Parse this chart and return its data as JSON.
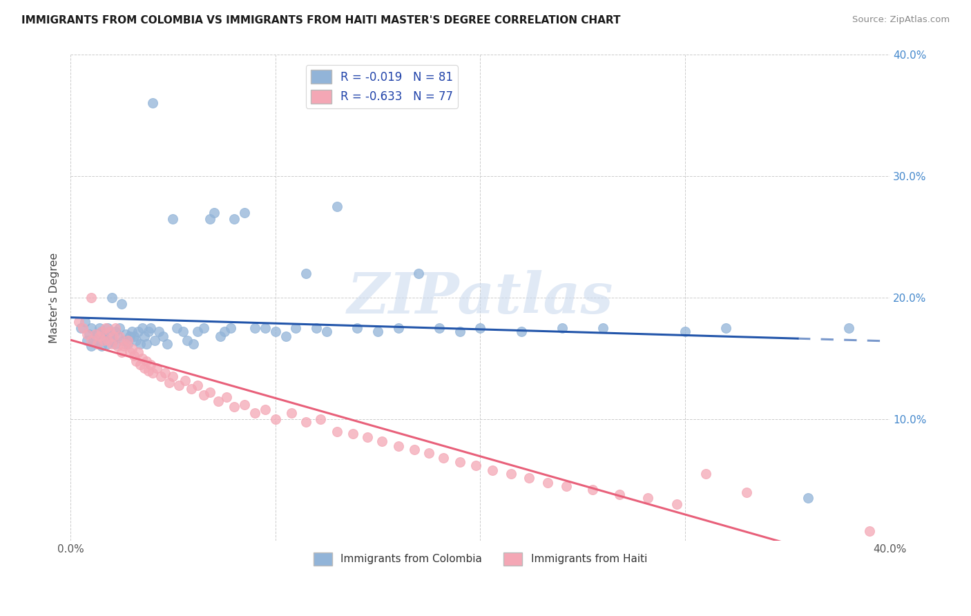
{
  "title": "IMMIGRANTS FROM COLOMBIA VS IMMIGRANTS FROM HAITI MASTER'S DEGREE CORRELATION CHART",
  "source": "Source: ZipAtlas.com",
  "ylabel": "Master's Degree",
  "xlim": [
    0.0,
    0.4
  ],
  "ylim": [
    0.0,
    0.4
  ],
  "colombia_R": -0.019,
  "colombia_N": 81,
  "haiti_R": -0.633,
  "haiti_N": 77,
  "colombia_color": "#92B4D8",
  "haiti_color": "#F4A7B5",
  "colombia_line_color": "#2255AA",
  "haiti_line_color": "#E8607A",
  "legend_colombia": "Immigrants from Colombia",
  "legend_haiti": "Immigrants from Haiti",
  "watermark": "ZIPatlas",
  "colombia_x": [
    0.005,
    0.007,
    0.008,
    0.009,
    0.01,
    0.01,
    0.011,
    0.012,
    0.013,
    0.013,
    0.014,
    0.015,
    0.015,
    0.016,
    0.017,
    0.018,
    0.018,
    0.019,
    0.02,
    0.021,
    0.022,
    0.022,
    0.023,
    0.024,
    0.025,
    0.026,
    0.027,
    0.028,
    0.029,
    0.03,
    0.031,
    0.032,
    0.033,
    0.034,
    0.035,
    0.036,
    0.037,
    0.038,
    0.039,
    0.04,
    0.041,
    0.043,
    0.045,
    0.047,
    0.05,
    0.052,
    0.055,
    0.057,
    0.06,
    0.062,
    0.065,
    0.068,
    0.07,
    0.073,
    0.075,
    0.078,
    0.08,
    0.085,
    0.09,
    0.095,
    0.1,
    0.105,
    0.11,
    0.115,
    0.12,
    0.125,
    0.13,
    0.14,
    0.15,
    0.16,
    0.17,
    0.18,
    0.19,
    0.2,
    0.22,
    0.24,
    0.26,
    0.3,
    0.32,
    0.36,
    0.38
  ],
  "colombia_y": [
    0.175,
    0.18,
    0.165,
    0.17,
    0.16,
    0.175,
    0.165,
    0.168,
    0.162,
    0.17,
    0.175,
    0.16,
    0.172,
    0.168,
    0.165,
    0.162,
    0.175,
    0.168,
    0.2,
    0.165,
    0.172,
    0.162,
    0.168,
    0.175,
    0.195,
    0.165,
    0.17,
    0.162,
    0.168,
    0.172,
    0.168,
    0.165,
    0.172,
    0.162,
    0.175,
    0.168,
    0.162,
    0.172,
    0.175,
    0.36,
    0.165,
    0.172,
    0.168,
    0.162,
    0.265,
    0.175,
    0.172,
    0.165,
    0.162,
    0.172,
    0.175,
    0.265,
    0.27,
    0.168,
    0.172,
    0.175,
    0.265,
    0.27,
    0.175,
    0.175,
    0.172,
    0.168,
    0.175,
    0.22,
    0.175,
    0.172,
    0.275,
    0.175,
    0.172,
    0.175,
    0.22,
    0.175,
    0.172,
    0.175,
    0.172,
    0.175,
    0.175,
    0.172,
    0.175,
    0.035,
    0.175
  ],
  "haiti_x": [
    0.004,
    0.006,
    0.008,
    0.01,
    0.01,
    0.012,
    0.013,
    0.014,
    0.015,
    0.016,
    0.017,
    0.018,
    0.019,
    0.02,
    0.021,
    0.022,
    0.023,
    0.024,
    0.025,
    0.026,
    0.027,
    0.028,
    0.029,
    0.03,
    0.031,
    0.032,
    0.033,
    0.034,
    0.035,
    0.036,
    0.037,
    0.038,
    0.039,
    0.04,
    0.042,
    0.044,
    0.046,
    0.048,
    0.05,
    0.053,
    0.056,
    0.059,
    0.062,
    0.065,
    0.068,
    0.072,
    0.076,
    0.08,
    0.085,
    0.09,
    0.095,
    0.1,
    0.108,
    0.115,
    0.122,
    0.13,
    0.138,
    0.145,
    0.152,
    0.16,
    0.168,
    0.175,
    0.182,
    0.19,
    0.198,
    0.206,
    0.215,
    0.224,
    0.233,
    0.242,
    0.255,
    0.268,
    0.282,
    0.296,
    0.31,
    0.33,
    0.39
  ],
  "haiti_y": [
    0.18,
    0.175,
    0.17,
    0.2,
    0.165,
    0.17,
    0.162,
    0.168,
    0.172,
    0.165,
    0.175,
    0.165,
    0.172,
    0.162,
    0.168,
    0.175,
    0.16,
    0.168,
    0.155,
    0.16,
    0.162,
    0.165,
    0.155,
    0.158,
    0.152,
    0.148,
    0.155,
    0.145,
    0.15,
    0.142,
    0.148,
    0.14,
    0.145,
    0.138,
    0.142,
    0.135,
    0.138,
    0.13,
    0.135,
    0.128,
    0.132,
    0.125,
    0.128,
    0.12,
    0.122,
    0.115,
    0.118,
    0.11,
    0.112,
    0.105,
    0.108,
    0.1,
    0.105,
    0.098,
    0.1,
    0.09,
    0.088,
    0.085,
    0.082,
    0.078,
    0.075,
    0.072,
    0.068,
    0.065,
    0.062,
    0.058,
    0.055,
    0.052,
    0.048,
    0.045,
    0.042,
    0.038,
    0.035,
    0.03,
    0.055,
    0.04,
    0.008
  ]
}
